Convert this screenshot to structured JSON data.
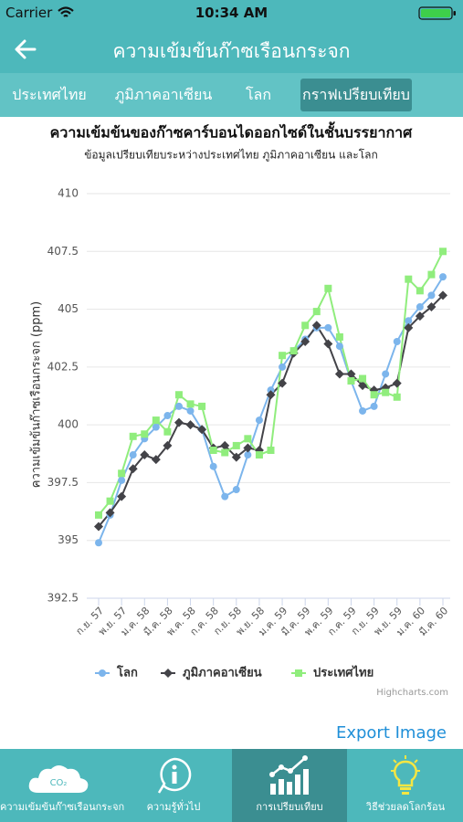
{
  "status_bar": {
    "carrier": "Carrier",
    "time": "10:34 AM"
  },
  "header": {
    "title": "ความเข้มข้นก๊าซเรือนกระจก"
  },
  "tabs": [
    "ประเทศไทย",
    "ภูมิภาคอาเซียน",
    "โลก",
    "กราฟเปรียบเทียบ"
  ],
  "chart_data": {
    "type": "line",
    "title": "ความเข้มข้นของก๊าซคาร์บอนไดออกไซด์ในชั้นบรรยากาศ",
    "subtitle": "ข้อมูลเปรียบเทียบระหว่างประเทศไทย ภูมิภาคอาเซียน และโลก",
    "y_label": "ความเข้มข้นก๊าซเรือนกระจก (ppm)",
    "credits": "Highcharts.com",
    "categories": [
      "ก.ย. 57",
      null,
      "พ.ย. 57",
      null,
      "ม.ค. 58",
      null,
      "มี.ค. 58",
      null,
      "พ.ค. 58",
      null,
      "ก.ค. 58",
      null,
      "ก.ย. 58",
      null,
      "พ.ย. 58",
      null,
      "ม.ค. 59",
      null,
      "มี.ค. 59",
      null,
      "พ.ค. 59",
      null,
      "ก.ค. 59",
      null,
      "ก.ย. 59",
      null,
      "พ.ย. 59",
      null,
      "ม.ค. 60",
      null,
      "มี.ค. 60"
    ],
    "series": [
      {
        "name": "โลก",
        "color": "#7cb5ec",
        "marker": "circle",
        "values": [
          394.9,
          396.1,
          397.6,
          398.7,
          399.4,
          399.9,
          400.4,
          400.8,
          400.6,
          399.8,
          398.2,
          396.9,
          397.2,
          398.7,
          400.2,
          401.5,
          402.5,
          403.2,
          403.7,
          404.2,
          404.2,
          403.4,
          401.9,
          400.6,
          400.8,
          402.2,
          403.6,
          404.5,
          405.1,
          405.6,
          406.4
        ]
      },
      {
        "name": "ภูมิภาคอาเซียน",
        "color": "#434348",
        "marker": "diamond",
        "values": [
          395.6,
          396.2,
          396.9,
          398.1,
          398.7,
          398.5,
          399.1,
          400.1,
          400.0,
          399.8,
          399.0,
          399.1,
          398.6,
          399.0,
          398.9,
          401.3,
          401.8,
          403.1,
          403.6,
          404.3,
          403.5,
          402.2,
          402.2,
          401.7,
          401.5,
          401.6,
          401.8,
          404.2,
          404.7,
          405.1,
          405.6
        ]
      },
      {
        "name": "ประเทศไทย",
        "color": "#90ed7d",
        "marker": "square",
        "values": [
          396.1,
          396.7,
          397.9,
          399.5,
          399.6,
          400.2,
          399.7,
          401.3,
          400.9,
          400.8,
          398.9,
          398.8,
          399.1,
          399.4,
          398.7,
          398.9,
          403.0,
          403.2,
          404.3,
          404.9,
          405.9,
          403.8,
          401.9,
          402.0,
          401.3,
          401.4,
          401.2,
          406.3,
          405.8,
          406.5,
          407.5
        ]
      }
    ],
    "ylim": [
      392.5,
      410
    ],
    "yticks": [
      392.5,
      395,
      397.5,
      400,
      402.5,
      405,
      407.5,
      410
    ],
    "grid": true,
    "legend": "bottom"
  },
  "export_button": "Export Image",
  "nav": {
    "icon_text": "CO₂",
    "items": [
      "ความเข้มข้นก๊าซเรือนกระจก",
      "ความรู้ทั่วไป",
      "การเปรียบเทียบ",
      "วิธีช่วยลดโลกร้อน"
    ]
  }
}
